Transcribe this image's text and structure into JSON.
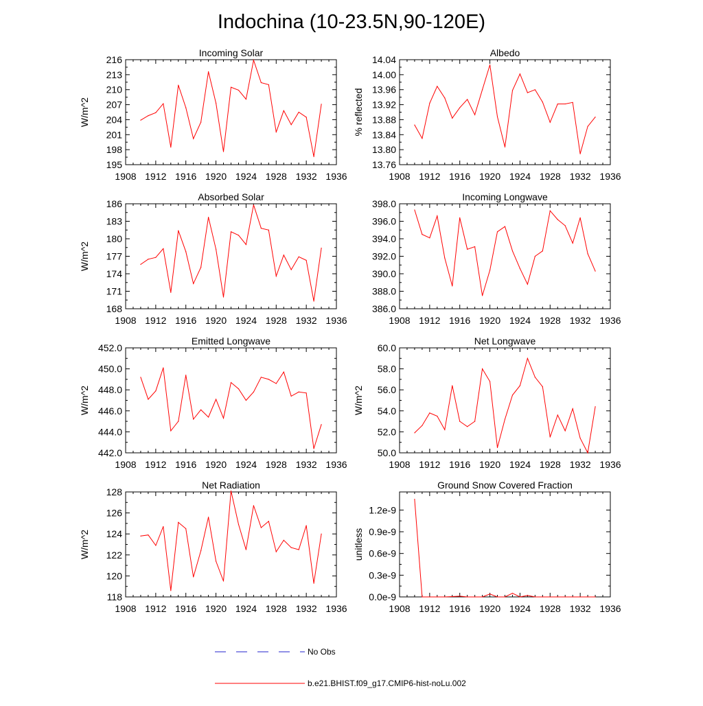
{
  "figure": {
    "title": "Indochina (10-23.5N,90-120E)"
  },
  "legend": {
    "items": [
      {
        "label": "No Obs",
        "color": "#2222cc",
        "style": "dashed"
      },
      {
        "label": "b.e21.BHIST.f09_g17.CMIP6-hist-noLu.002",
        "color": "#ff0000",
        "style": "solid"
      }
    ]
  },
  "chart_data": [
    {
      "type": "line",
      "title": "Incoming Solar",
      "ylabel": "W/m^2",
      "xlim": [
        1908,
        1936
      ],
      "ylim": [
        195,
        216
      ],
      "xticks": [
        "1908",
        "1912",
        "1916",
        "1920",
        "1924",
        "1928",
        "1932",
        "1936"
      ],
      "yticks": [
        "195",
        "198",
        "201",
        "204",
        "207",
        "210",
        "213",
        "216"
      ],
      "series": [
        {
          "color": "#ff0000",
          "x": [
            1910,
            1911,
            1912,
            1913,
            1914,
            1915,
            1916,
            1917,
            1918,
            1919,
            1920,
            1921,
            1922,
            1923,
            1924,
            1925,
            1926,
            1927,
            1928,
            1929,
            1930,
            1931,
            1932,
            1933,
            1934
          ],
          "values": [
            203.9,
            204.8,
            205.4,
            207.2,
            198.5,
            210.9,
            206.4,
            200.2,
            203.5,
            213.6,
            207.3,
            197.6,
            210.5,
            209.9,
            208.1,
            215.9,
            211.4,
            211.0,
            201.5,
            205.8,
            203.0,
            205.5,
            204.5,
            196.6,
            207.1
          ]
        }
      ]
    },
    {
      "type": "line",
      "title": "Albedo",
      "ylabel": "% reflected",
      "xlim": [
        1908,
        1936
      ],
      "ylim": [
        13.76,
        14.04
      ],
      "xticks": [
        "1908",
        "1912",
        "1916",
        "1920",
        "1924",
        "1928",
        "1932",
        "1936"
      ],
      "yticks": [
        "13.76",
        "13.80",
        "13.84",
        "13.88",
        "13.92",
        "13.96",
        "14.00",
        "14.04"
      ],
      "series": [
        {
          "color": "#ff0000",
          "x": [
            1910,
            1911,
            1912,
            1913,
            1914,
            1915,
            1916,
            1917,
            1918,
            1919,
            1920,
            1921,
            1922,
            1923,
            1924,
            1925,
            1926,
            1927,
            1928,
            1929,
            1930,
            1931,
            1932,
            1933,
            1934
          ],
          "values": [
            13.866,
            13.83,
            13.924,
            13.969,
            13.938,
            13.884,
            13.912,
            13.934,
            13.893,
            13.96,
            14.026,
            13.888,
            13.807,
            13.958,
            14.002,
            13.952,
            13.96,
            13.927,
            13.873,
            13.922,
            13.922,
            13.926,
            13.789,
            13.862,
            13.887
          ]
        }
      ]
    },
    {
      "type": "line",
      "title": "Absorbed Solar",
      "ylabel": "W/m^2",
      "xlim": [
        1908,
        1936
      ],
      "ylim": [
        168,
        186
      ],
      "xticks": [
        "1908",
        "1912",
        "1916",
        "1920",
        "1924",
        "1928",
        "1932",
        "1936"
      ],
      "yticks": [
        "168",
        "171",
        "174",
        "177",
        "180",
        "183",
        "186"
      ],
      "series": [
        {
          "color": "#ff0000",
          "x": [
            1910,
            1911,
            1912,
            1913,
            1914,
            1915,
            1916,
            1917,
            1918,
            1919,
            1920,
            1921,
            1922,
            1923,
            1924,
            1925,
            1926,
            1927,
            1928,
            1929,
            1930,
            1931,
            1932,
            1933,
            1934
          ],
          "values": [
            175.6,
            176.5,
            176.8,
            178.3,
            170.8,
            181.4,
            177.8,
            172.3,
            175.1,
            183.7,
            178.2,
            170.0,
            181.2,
            180.6,
            179.0,
            185.8,
            181.8,
            181.5,
            173.6,
            177.2,
            174.7,
            176.9,
            176.3,
            169.3,
            178.4
          ]
        }
      ]
    },
    {
      "type": "line",
      "title": "Incoming Longwave",
      "ylabel": "",
      "xlim": [
        1908,
        1936
      ],
      "ylim": [
        386.0,
        398.0
      ],
      "xticks": [
        "1908",
        "1912",
        "1916",
        "1920",
        "1924",
        "1928",
        "1932",
        "1936"
      ],
      "yticks": [
        "386.0",
        "388.0",
        "390.0",
        "392.0",
        "394.0",
        "396.0",
        "398.0"
      ],
      "series": [
        {
          "color": "#ff0000",
          "x": [
            1910,
            1911,
            1912,
            1913,
            1914,
            1915,
            1916,
            1917,
            1918,
            1919,
            1920,
            1921,
            1922,
            1923,
            1924,
            1925,
            1926,
            1927,
            1928,
            1929,
            1930,
            1931,
            1932,
            1933,
            1934
          ],
          "values": [
            397.3,
            394.5,
            394.1,
            396.6,
            391.8,
            388.6,
            396.4,
            392.8,
            393.1,
            387.5,
            390.4,
            394.8,
            395.4,
            392.6,
            390.6,
            388.8,
            392.0,
            392.6,
            397.2,
            396.2,
            395.5,
            393.5,
            396.4,
            392.3,
            390.3
          ]
        }
      ]
    },
    {
      "type": "line",
      "title": "Emitted Longwave",
      "ylabel": "W/m^2",
      "xlim": [
        1908,
        1936
      ],
      "ylim": [
        442.0,
        452.0
      ],
      "xticks": [
        "1908",
        "1912",
        "1916",
        "1920",
        "1924",
        "1928",
        "1932",
        "1936"
      ],
      "yticks": [
        "442.0",
        "444.0",
        "446.0",
        "448.0",
        "450.0",
        "452.0"
      ],
      "series": [
        {
          "color": "#ff0000",
          "x": [
            1910,
            1911,
            1912,
            1913,
            1914,
            1915,
            1916,
            1917,
            1918,
            1919,
            1920,
            1921,
            1922,
            1923,
            1924,
            1925,
            1926,
            1927,
            1928,
            1929,
            1930,
            1931,
            1932,
            1933,
            1934
          ],
          "values": [
            449.2,
            447.1,
            447.9,
            450.1,
            444.1,
            445.0,
            449.4,
            445.2,
            446.1,
            445.4,
            447.1,
            445.3,
            448.7,
            448.1,
            447.0,
            447.8,
            449.2,
            449.0,
            448.6,
            449.7,
            447.4,
            447.8,
            447.7,
            442.4,
            444.7
          ]
        }
      ]
    },
    {
      "type": "line",
      "title": "Net Longwave",
      "ylabel": "W/m^2",
      "xlim": [
        1908,
        1936
      ],
      "ylim": [
        50.0,
        60.0
      ],
      "xticks": [
        "1908",
        "1912",
        "1916",
        "1920",
        "1924",
        "1928",
        "1932",
        "1936"
      ],
      "yticks": [
        "50.0",
        "52.0",
        "54.0",
        "56.0",
        "58.0",
        "60.0"
      ],
      "series": [
        {
          "color": "#ff0000",
          "x": [
            1910,
            1911,
            1912,
            1913,
            1914,
            1915,
            1916,
            1917,
            1918,
            1919,
            1920,
            1921,
            1922,
            1923,
            1924,
            1925,
            1926,
            1927,
            1928,
            1929,
            1930,
            1931,
            1932,
            1933,
            1934
          ],
          "values": [
            51.9,
            52.6,
            53.8,
            53.5,
            52.2,
            56.4,
            53.0,
            52.5,
            53.0,
            58.0,
            56.8,
            50.5,
            53.2,
            55.5,
            56.4,
            59.0,
            57.2,
            56.3,
            51.5,
            53.6,
            52.1,
            54.2,
            51.4,
            50.0,
            54.4
          ]
        }
      ]
    },
    {
      "type": "line",
      "title": "Net Radiation",
      "ylabel": "W/m^2",
      "xlim": [
        1908,
        1936
      ],
      "ylim": [
        118,
        128
      ],
      "xticks": [
        "1908",
        "1912",
        "1916",
        "1920",
        "1924",
        "1928",
        "1932",
        "1936"
      ],
      "yticks": [
        "118",
        "120",
        "122",
        "124",
        "126",
        "128"
      ],
      "series": [
        {
          "color": "#ff0000",
          "x": [
            1910,
            1911,
            1912,
            1913,
            1914,
            1915,
            1916,
            1917,
            1918,
            1919,
            1920,
            1921,
            1922,
            1923,
            1924,
            1925,
            1926,
            1927,
            1928,
            1929,
            1930,
            1931,
            1932,
            1933,
            1934
          ],
          "values": [
            123.8,
            123.9,
            122.9,
            124.7,
            118.6,
            125.1,
            124.5,
            119.9,
            122.4,
            125.6,
            121.4,
            119.5,
            128.1,
            124.9,
            122.5,
            126.7,
            124.6,
            125.2,
            122.3,
            123.4,
            122.7,
            122.5,
            124.8,
            119.3,
            124.0
          ]
        }
      ]
    },
    {
      "type": "line",
      "title": "Ground Snow Covered Fraction",
      "ylabel": "unitless",
      "xlim": [
        1908,
        1936
      ],
      "ylim": [
        0,
        1.45e-09
      ],
      "xticks": [
        "1908",
        "1912",
        "1916",
        "1920",
        "1924",
        "1928",
        "1932",
        "1936"
      ],
      "ytick_values": [
        0,
        3e-10,
        6e-10,
        9e-10,
        1.2e-09
      ],
      "yticks": [
        "0.0e-9",
        "0.3e-9",
        "0.6e-9",
        "0.9e-9",
        "1.2e-9"
      ],
      "series": [
        {
          "color": "#ff0000",
          "x": [
            1910,
            1911,
            1912,
            1913,
            1914,
            1915,
            1916,
            1917,
            1918,
            1919,
            1920,
            1921,
            1922,
            1923,
            1924,
            1925,
            1926,
            1927,
            1928,
            1929,
            1930,
            1931,
            1932,
            1933,
            1934
          ],
          "values": [
            1.35e-09,
            0,
            0,
            0,
            0,
            5e-12,
            1e-11,
            0,
            0,
            0,
            4e-11,
            0,
            0,
            5e-11,
            0,
            2e-11,
            0,
            0,
            0,
            0,
            0,
            0,
            0,
            0,
            0
          ]
        }
      ]
    }
  ]
}
